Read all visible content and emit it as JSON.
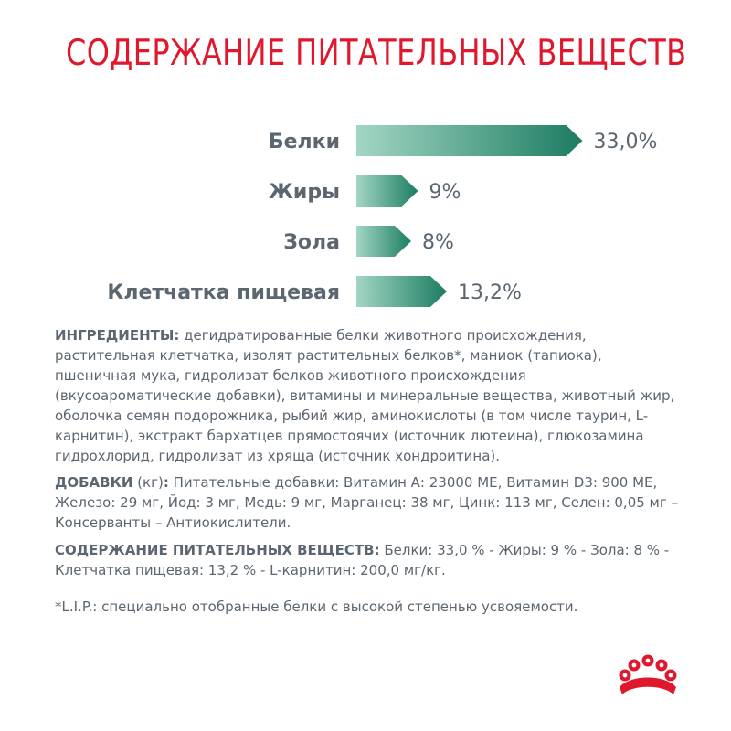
{
  "title": "СОДЕРЖАНИЕ ПИТАТЕЛЬНЫХ ВЕЩЕСТВ",
  "chart_data": {
    "type": "bar",
    "orientation": "horizontal",
    "categories": [
      "Белки",
      "Жиры",
      "Зола",
      "Клетчатка пищевая"
    ],
    "values": [
      33.0,
      9,
      8,
      13.2
    ],
    "value_labels": [
      "33,0%",
      "9%",
      "8%",
      "13,2%"
    ],
    "unit": "%",
    "title": "",
    "xlabel": "",
    "ylabel": "",
    "grid": false,
    "colors": {
      "bar_light": "#a3d6c4",
      "bar_dark": "#1c7c62",
      "text": "#5c6670"
    }
  },
  "ingredients": {
    "label": "ИНГРЕДИЕНТЫ:",
    "text": " дегидратированные белки животного происхождения, растительная клетчатка, изолят растительных белков*, маниок (тапиока), пшеничная мука, гидролизат белков животного происхождения (вкусоароматические добавки), витамины и минеральные вещества, животный жир, оболочка семян подорожника, рыбий жир, аминокислоты (в том числе таурин, L-карнитин), экстракт бархатцев прямостоячих (источник лютеина), глюкозамина гидрохлорид, гидролизат из хряща (источник хондроитина)."
  },
  "additives": {
    "label": "ДОБАВКИ",
    "unit": " (кг)",
    "colon": ":",
    "text": " Питательные добавки: Витамин А: 23000 МЕ, Витамин D3: 900 МЕ, Железо: 29 мг, Йод: 3 мг, Медь: 9 мг, Марганец: 38 мг, Цинк: 113 мг, Селен: 0,05 мг – Консерванты – Антиокислители."
  },
  "nutrients": {
    "label": "СОДЕРЖАНИЕ ПИТАТЕЛЬНЫХ ВЕЩЕСТВ:",
    "text": " Белки: 33,0 % - Жиры: 9 % - Зола: 8 % - Клетчатка пищевая: 13,2 % - L-карнитин: 200,0 мг/кг."
  },
  "footnote": "*L.I.P.: специально отобранные белки с высокой степенью усвояемости.",
  "logo": {
    "icon": "royal-canin-crown-icon",
    "color": "#e0182d"
  }
}
